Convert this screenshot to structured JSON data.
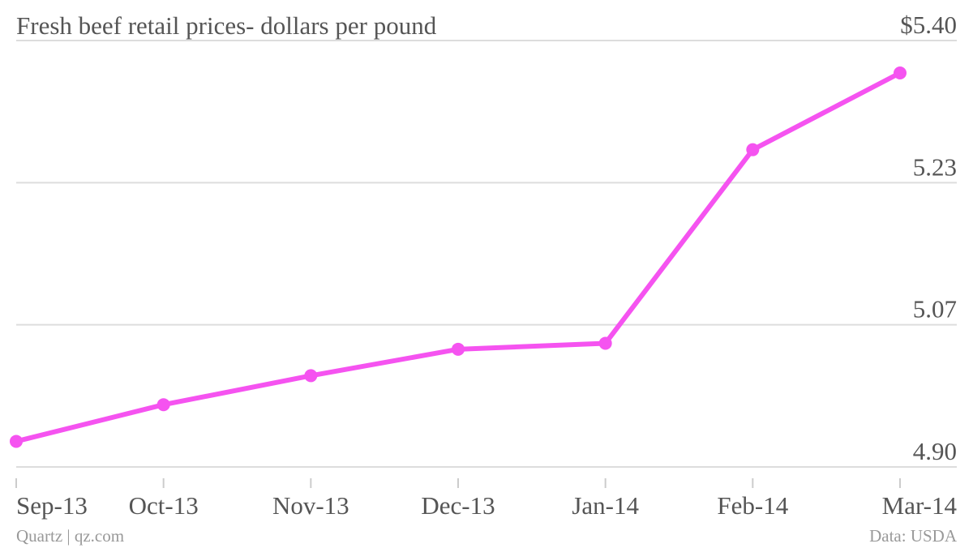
{
  "chart_data": {
    "type": "line",
    "title": "Fresh beef retail prices- dollars per pound",
    "credit": "Quartz | qz.com",
    "source": "Data: USDA",
    "categories": [
      "Sep-13",
      "Oct-13",
      "Nov-13",
      "Dec-13",
      "Jan-14",
      "Feb-14",
      "Mar-14"
    ],
    "series": [
      {
        "name": "Fresh beef retail price",
        "color": "#f553f0",
        "values": [
          4.93,
          4.973,
          5.007,
          5.038,
          5.045,
          5.272,
          5.362
        ]
      }
    ],
    "ylim": [
      4.9,
      5.4
    ],
    "yticks": [
      {
        "value": 4.9,
        "label": "4.90"
      },
      {
        "value": 5.0667,
        "label": "5.07"
      },
      {
        "value": 5.2333,
        "label": "5.23"
      },
      {
        "value": 5.4,
        "label": "$5.40"
      }
    ],
    "grid": true
  }
}
